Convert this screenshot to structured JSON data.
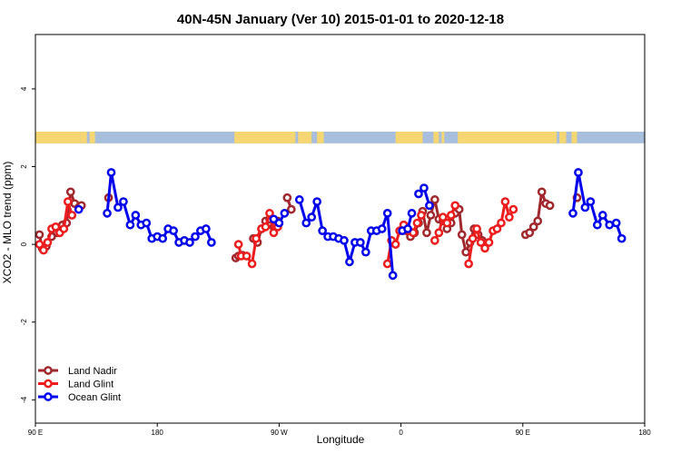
{
  "chart_data": {
    "type": "line",
    "title": "40N-45N January (Ver 10)   2015-01-01 to 2020-12-18",
    "xlabel": "Longitude",
    "ylabel": "XCO2 - MLO trend (ppm)",
    "xlim": [
      90,
      540
    ],
    "ylim": [
      -4.6,
      5.4
    ],
    "x_ticks": [
      {
        "value": 90,
        "label": "90 E"
      },
      {
        "value": 180,
        "label": "180"
      },
      {
        "value": 270,
        "label": "90 W"
      },
      {
        "value": 360,
        "label": "0"
      },
      {
        "value": 450,
        "label": "90 E"
      },
      {
        "value": 540,
        "label": "180"
      }
    ],
    "y_ticks": [
      {
        "value": -4,
        "label": "-4"
      },
      {
        "value": -2,
        "label": "-2"
      },
      {
        "value": 0,
        "label": "0"
      },
      {
        "value": 2,
        "label": "2"
      },
      {
        "value": 4,
        "label": "4"
      }
    ],
    "grid": false,
    "legend_position": "bottom-left",
    "land_ocean_strip": {
      "y_range": [
        2.6,
        2.9
      ],
      "land_color": "#f5d673",
      "ocean_color": "#a7bedd",
      "land_lon": [
        [
          90,
          123
        ],
        [
          123,
          128
        ],
        [
          130,
          134
        ],
        [
          237,
          282
        ],
        [
          284,
          294
        ],
        [
          298,
          303
        ],
        [
          356,
          376
        ],
        [
          384,
          388
        ],
        [
          390,
          392
        ],
        [
          402,
          475
        ],
        [
          477,
          482
        ],
        [
          486,
          490
        ]
      ]
    },
    "series": [
      {
        "name": "Land Nadir",
        "color": "#a0282d",
        "segments": [
          [
            [
              93,
              0.25
            ],
            [
              95,
              -0.1
            ],
            [
              98,
              -0.05
            ],
            [
              102,
              0.2
            ],
            [
              106,
              0.3
            ],
            [
              110,
              0.5
            ],
            [
              113,
              0.55
            ],
            [
              116,
              1.35
            ],
            [
              119,
              1.05
            ],
            [
              122,
              0.95
            ],
            [
              124,
              1.0
            ]
          ],
          [
            [
              144,
              1.2
            ]
          ],
          [
            [
              238,
              -0.35
            ],
            [
              240,
              -0.3
            ],
            [
              243,
              -0.28
            ]
          ],
          [
            [
              251,
              0.15
            ],
            [
              254,
              0.05
            ],
            [
              257,
              0.4
            ],
            [
              260,
              0.6
            ],
            [
              263,
              0.65
            ],
            [
              266,
              0.45
            ],
            [
              269,
              0.6
            ]
          ],
          [
            [
              276,
              1.2
            ],
            [
              279,
              0.9
            ]
          ],
          [
            [
              364,
              0.35
            ],
            [
              367,
              0.2
            ],
            [
              370,
              0.3
            ],
            [
              373,
              0.55
            ],
            [
              376,
              0.85
            ],
            [
              379,
              0.3
            ],
            [
              382,
              0.75
            ],
            [
              385,
              1.15
            ],
            [
              388,
              0.65
            ],
            [
              391,
              0.6
            ],
            [
              394,
              0.4
            ],
            [
              397,
              0.55
            ],
            [
              400,
              0.8
            ],
            [
              403,
              0.9
            ],
            [
              405,
              0.25
            ],
            [
              408,
              -0.2
            ],
            [
              411,
              0.05
            ],
            [
              414,
              0.4
            ],
            [
              417,
              0.25
            ],
            [
              420,
              0.1
            ]
          ],
          [
            [
              452,
              0.25
            ],
            [
              455,
              0.3
            ],
            [
              458,
              0.45
            ],
            [
              461,
              0.6
            ],
            [
              464,
              1.35
            ],
            [
              467,
              1.05
            ],
            [
              470,
              1.0
            ]
          ],
          [
            [
              490,
              1.2
            ]
          ]
        ]
      },
      {
        "name": "Land Glint",
        "color": "#ee1c1c",
        "segments": [
          [
            [
              93,
              0.0
            ],
            [
              96,
              -0.15
            ],
            [
              99,
              0.05
            ],
            [
              102,
              0.4
            ],
            [
              105,
              0.45
            ],
            [
              108,
              0.3
            ],
            [
              111,
              0.4
            ],
            [
              114,
              1.1
            ],
            [
              117,
              0.75
            ]
          ],
          [
            [
              240,
              0.0
            ],
            [
              242,
              -0.3
            ],
            [
              246,
              -0.3
            ],
            [
              250,
              -0.5
            ],
            [
              253,
              0.15
            ],
            [
              257,
              0.4
            ],
            [
              260,
              0.45
            ],
            [
              263,
              0.8
            ],
            [
              266,
              0.3
            ],
            [
              269,
              0.45
            ]
          ],
          [
            [
              350,
              -0.5
            ],
            [
              353,
              0.1
            ],
            [
              356,
              0.0
            ],
            [
              359,
              0.35
            ],
            [
              362,
              0.5
            ],
            [
              366,
              0.35
            ],
            [
              369,
              0.3
            ],
            [
              372,
              0.55
            ],
            [
              375,
              0.75
            ]
          ],
          [
            [
              385,
              0.1
            ],
            [
              388,
              0.3
            ],
            [
              391,
              0.7
            ],
            [
              394,
              0.55
            ],
            [
              397,
              0.75
            ],
            [
              400,
              1.0
            ]
          ],
          [
            [
              410,
              -0.5
            ],
            [
              413,
              0.15
            ],
            [
              416,
              0.4
            ],
            [
              419,
              0.05
            ],
            [
              422,
              -0.1
            ],
            [
              425,
              0.05
            ],
            [
              428,
              0.35
            ],
            [
              431,
              0.4
            ],
            [
              434,
              0.55
            ],
            [
              437,
              1.1
            ],
            [
              440,
              0.7
            ],
            [
              443,
              0.9
            ]
          ]
        ]
      },
      {
        "name": "Ocean Glint",
        "color": "#0000ee",
        "segments": [
          [
            [
              122,
              0.9
            ]
          ],
          [
            [
              143,
              0.8
            ],
            [
              146,
              1.85
            ],
            [
              151,
              0.95
            ],
            [
              155,
              1.1
            ],
            [
              160,
              0.5
            ],
            [
              164,
              0.75
            ],
            [
              168,
              0.5
            ],
            [
              172,
              0.55
            ],
            [
              176,
              0.15
            ],
            [
              180,
              0.2
            ],
            [
              184,
              0.15
            ],
            [
              188,
              0.4
            ],
            [
              192,
              0.35
            ],
            [
              196,
              0.05
            ],
            [
              200,
              0.1
            ],
            [
              204,
              0.05
            ],
            [
              208,
              0.2
            ],
            [
              212,
              0.35
            ],
            [
              216,
              0.4
            ],
            [
              220,
              0.05
            ]
          ],
          [
            [
              266,
              0.65
            ],
            [
              270,
              0.55
            ],
            [
              274,
              0.8
            ]
          ],
          [
            [
              285,
              1.15
            ],
            [
              290,
              0.55
            ],
            [
              294,
              0.7
            ],
            [
              298,
              1.1
            ],
            [
              302,
              0.35
            ],
            [
              306,
              0.2
            ],
            [
              310,
              0.2
            ],
            [
              314,
              0.15
            ],
            [
              318,
              0.1
            ],
            [
              322,
              -0.45
            ],
            [
              326,
              0.05
            ],
            [
              330,
              0.05
            ],
            [
              334,
              -0.2
            ],
            [
              338,
              0.35
            ],
            [
              342,
              0.35
            ],
            [
              346,
              0.4
            ],
            [
              350,
              0.8
            ],
            [
              354,
              -0.8
            ]
          ],
          [
            [
              361,
              0.35
            ],
            [
              365,
              0.4
            ],
            [
              368,
              0.8
            ]
          ],
          [
            [
              373,
              1.3
            ],
            [
              377,
              1.45
            ],
            [
              381,
              1.0
            ]
          ],
          [
            [
              487,
              0.8
            ],
            [
              491,
              1.85
            ],
            [
              496,
              0.95
            ],
            [
              500,
              1.1
            ],
            [
              505,
              0.5
            ],
            [
              509,
              0.75
            ],
            [
              514,
              0.5
            ],
            [
              519,
              0.55
            ],
            [
              523,
              0.15
            ]
          ]
        ]
      }
    ]
  }
}
